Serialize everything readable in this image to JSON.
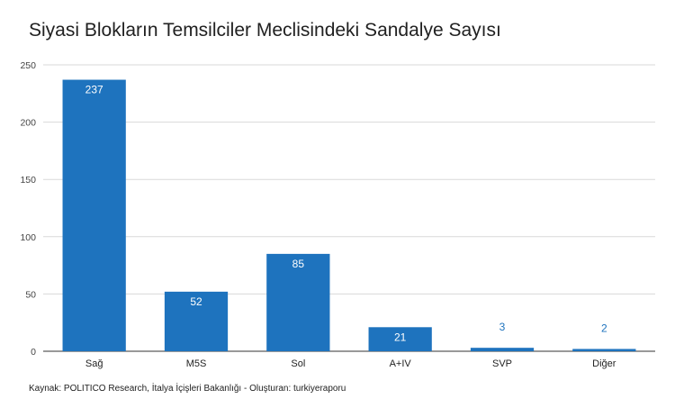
{
  "chart_data": {
    "type": "bar",
    "title": "Siyasi Blokların Temsilciler Meclisindeki Sandalye Sayısı",
    "categories": [
      "Sağ",
      "M5S",
      "Sol",
      "A+IV",
      "SVP",
      "Diğer"
    ],
    "values": [
      237,
      52,
      85,
      21,
      3,
      2
    ],
    "data_labels": [
      "237",
      "52",
      "85",
      "21",
      "3",
      "2"
    ],
    "ylim": [
      0,
      250
    ],
    "yticks": [
      0,
      50,
      100,
      150,
      200,
      250
    ],
    "grid": true,
    "legend": "none",
    "bar_color": "#1e73be",
    "label_inside_color": "#ffffff",
    "label_outside_color": "#1e73be",
    "source": "Kaynak: POLITICO Research, İtalya İçişleri Bakanlığı - Oluşturan: turkiyeraporu"
  }
}
